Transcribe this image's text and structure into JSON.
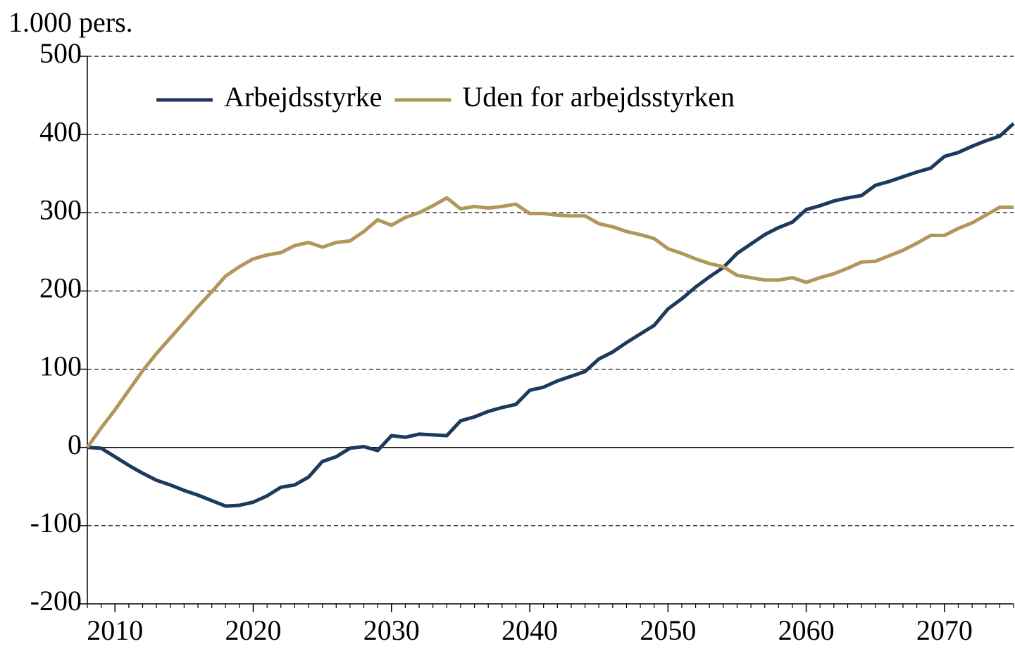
{
  "chart_data": {
    "type": "line",
    "y_label": "1.000 pers.",
    "x": [
      2008,
      2009,
      2010,
      2011,
      2012,
      2013,
      2014,
      2015,
      2016,
      2017,
      2018,
      2019,
      2020,
      2021,
      2022,
      2023,
      2024,
      2025,
      2026,
      2027,
      2028,
      2029,
      2030,
      2031,
      2032,
      2033,
      2034,
      2035,
      2036,
      2037,
      2038,
      2039,
      2040,
      2041,
      2042,
      2043,
      2044,
      2045,
      2046,
      2047,
      2048,
      2049,
      2050,
      2051,
      2052,
      2053,
      2054,
      2055,
      2056,
      2057,
      2058,
      2059,
      2060,
      2061,
      2062,
      2063,
      2064,
      2065,
      2066,
      2067,
      2068,
      2069,
      2070,
      2071,
      2072,
      2073,
      2074,
      2075
    ],
    "series": [
      {
        "name": "Arbejdsstyrke",
        "color": "#1b3a5c",
        "values": [
          0,
          -1,
          -12,
          -23,
          -33,
          -42,
          -48,
          -55,
          -61,
          -68,
          -75,
          -74,
          -70,
          -62,
          -51,
          -48,
          -38,
          -18,
          -12,
          -1,
          1,
          -4,
          15,
          13,
          17,
          16,
          15,
          34,
          39,
          46,
          51,
          55,
          73,
          77,
          85,
          91,
          97,
          113,
          122,
          134,
          145,
          156,
          177,
          190,
          205,
          218,
          230,
          248,
          260,
          272,
          281,
          288,
          304,
          309,
          315,
          319,
          322,
          335,
          340,
          346,
          352,
          357,
          372,
          377,
          385,
          392,
          398,
          414
        ]
      },
      {
        "name": "Uden for arbejdsstyrken",
        "color": "#b0975a",
        "values": [
          0,
          25,
          48,
          73,
          98,
          120,
          140,
          160,
          180,
          199,
          219,
          231,
          241,
          246,
          249,
          258,
          262,
          256,
          262,
          264,
          276,
          291,
          284,
          294,
          300,
          309,
          319,
          305,
          308,
          306,
          308,
          311,
          299,
          299,
          297,
          296,
          296,
          286,
          282,
          276,
          272,
          267,
          254,
          248,
          241,
          235,
          231,
          220,
          217,
          214,
          214,
          217,
          211,
          217,
          222,
          229,
          237,
          238,
          245,
          252,
          261,
          271,
          271,
          280,
          287,
          297,
          307,
          307
        ]
      }
    ],
    "xlim": [
      2008,
      2075
    ],
    "xticks": [
      2010,
      2020,
      2030,
      2040,
      2050,
      2060,
      2070
    ],
    "ylim": [
      -200,
      500
    ],
    "yticks": [
      -200,
      -100,
      0,
      100,
      200,
      300,
      400,
      500
    ],
    "grid": true,
    "legend": "top"
  }
}
